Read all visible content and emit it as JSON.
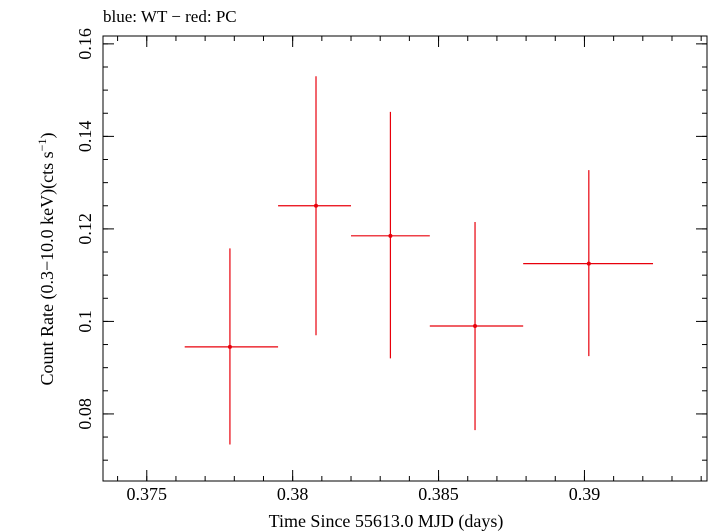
{
  "chart_data": {
    "type": "scatter",
    "title": "blue: WT − red: PC",
    "xlabel": "Time Since 55613.0 MJD (days)",
    "ylabel_main": "Count Rate (0.3−10.0 keV)(cts s",
    "ylabel_sup": "−1",
    "ylabel_end": ")",
    "xlim": [
      0.3735,
      0.3942
    ],
    "ylim": [
      0.0655,
      0.1617
    ],
    "x_ticks": [
      {
        "value": 0.375,
        "label": "0.375"
      },
      {
        "value": 0.38,
        "label": "0.38"
      },
      {
        "value": 0.385,
        "label": "0.385"
      },
      {
        "value": 0.39,
        "label": "0.39"
      }
    ],
    "y_ticks": [
      {
        "value": 0.08,
        "label": "0.08"
      },
      {
        "value": 0.1,
        "label": "0.1"
      },
      {
        "value": 0.12,
        "label": "0.12"
      },
      {
        "value": 0.14,
        "label": "0.14"
      },
      {
        "value": 0.16,
        "label": "0.16"
      }
    ],
    "x_minor_step": 0.001,
    "y_minor_step": 0.005,
    "grid": false,
    "series": [
      {
        "name": "PC",
        "color": "#e8000b",
        "points": [
          {
            "x": 0.37785,
            "xerr": [
              0.3763,
              0.3795
            ],
            "y": 0.0945,
            "yerr": [
              0.0734,
              0.1158
            ]
          },
          {
            "x": 0.3808,
            "xerr": [
              0.3795,
              0.382
            ],
            "y": 0.125,
            "yerr": [
              0.097,
              0.153
            ]
          },
          {
            "x": 0.38335,
            "xerr": [
              0.382,
              0.3847
            ],
            "y": 0.1185,
            "yerr": [
              0.092,
              0.1453
            ]
          },
          {
            "x": 0.38625,
            "xerr": [
              0.3847,
              0.3879
            ],
            "y": 0.099,
            "yerr": [
              0.0765,
              0.1215
            ]
          },
          {
            "x": 0.39015,
            "xerr": [
              0.3879,
              0.39235
            ],
            "y": 0.1125,
            "yerr": [
              0.0925,
              0.1327
            ]
          }
        ]
      }
    ]
  }
}
